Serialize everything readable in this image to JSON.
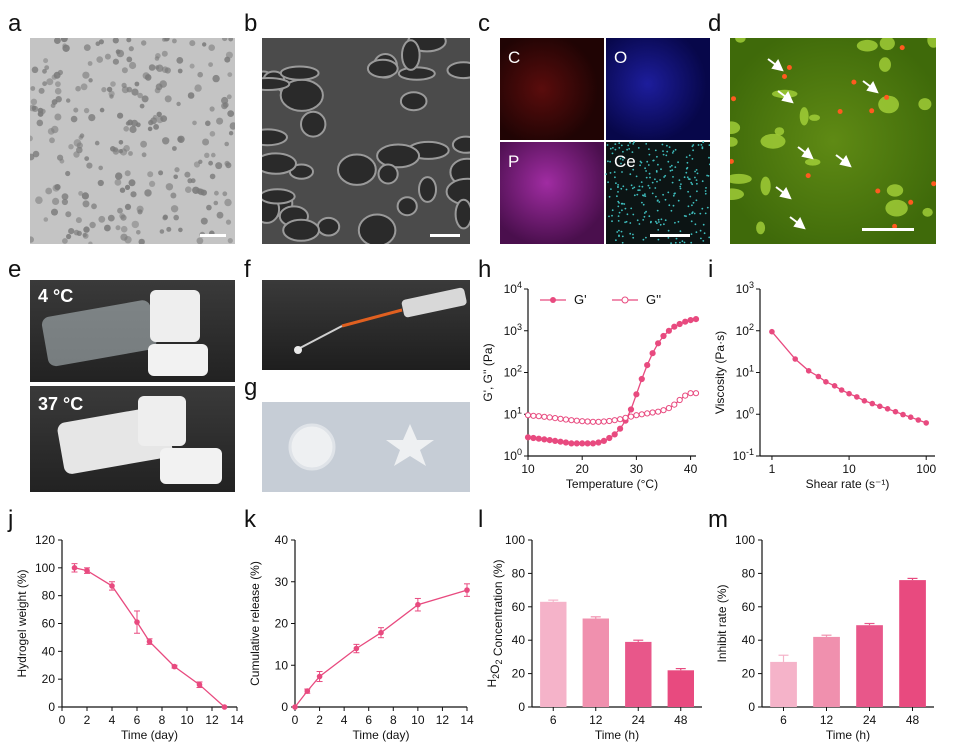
{
  "panel_labels": {
    "a": "a",
    "b": "b",
    "c": "c",
    "d": "d",
    "e": "e",
    "f": "f",
    "g": "g",
    "h": "h",
    "i": "i",
    "j": "j",
    "k": "k",
    "l": "l",
    "m": "m"
  },
  "eds_elements": [
    "C",
    "O",
    "P",
    "Ce"
  ],
  "photo_e": {
    "top": "4 °C",
    "bottom": "37 °C"
  },
  "colors": {
    "accent": "#e84a7f",
    "light_pink": "#f5b3c9",
    "mid_pink": "#f090ae",
    "dark_pink": "#e8578a",
    "tem_bg": "#bfbfbf",
    "sem_bg": "#5a5a5a"
  },
  "chart_data": [
    {
      "panel": "h",
      "type": "line",
      "xlabel": "Temperature (°C)",
      "ylabel": "G', G'' (Pa)",
      "xlim": [
        10,
        41
      ],
      "ylog": true,
      "ylim": [
        1,
        10000
      ],
      "xticks": [
        "10",
        "20",
        "30",
        "40"
      ],
      "yticks": [
        "10^0",
        "10^1",
        "10^2",
        "10^3",
        "10^4"
      ],
      "series": [
        {
          "name": "G'",
          "marker": "filled",
          "x": [
            10,
            11,
            12,
            13,
            14,
            15,
            16,
            17,
            18,
            19,
            20,
            21,
            22,
            23,
            24,
            25,
            26,
            27,
            28,
            29,
            30,
            31,
            32,
            33,
            34,
            35,
            36,
            37,
            38,
            39,
            40,
            41
          ],
          "y": [
            2.8,
            2.7,
            2.6,
            2.5,
            2.4,
            2.3,
            2.2,
            2.1,
            2.0,
            2.0,
            2.0,
            2.0,
            2.0,
            2.1,
            2.3,
            2.7,
            3.3,
            4.5,
            7,
            13,
            30,
            70,
            150,
            290,
            500,
            750,
            1000,
            1250,
            1450,
            1650,
            1800,
            1900
          ]
        },
        {
          "name": "G''",
          "marker": "open",
          "x": [
            10,
            11,
            12,
            13,
            14,
            15,
            16,
            17,
            18,
            19,
            20,
            21,
            22,
            23,
            24,
            25,
            26,
            27,
            28,
            29,
            30,
            31,
            32,
            33,
            34,
            35,
            36,
            37,
            38,
            39,
            40,
            41
          ],
          "y": [
            9.5,
            9.2,
            9.0,
            8.7,
            8.4,
            8.1,
            7.8,
            7.5,
            7.2,
            7.0,
            6.8,
            6.7,
            6.6,
            6.6,
            6.7,
            6.9,
            7.2,
            7.6,
            8.2,
            8.8,
            9.5,
            10,
            10.5,
            11,
            11.5,
            12.5,
            14,
            17,
            22,
            28,
            32,
            32
          ]
        }
      ]
    },
    {
      "panel": "i",
      "type": "line",
      "xlabel": "Shear rate (s⁻¹)",
      "ylabel": "Viscosity (Pa·s)",
      "xlog": true,
      "ylog": true,
      "xlim": [
        0.7,
        130
      ],
      "ylim": [
        0.1,
        1000
      ],
      "xticks": [
        "1",
        "10",
        "100"
      ],
      "yticks": [
        "10^-1",
        "10^0",
        "10^1",
        "10^2",
        "10^3"
      ],
      "series": [
        {
          "x": [
            1,
            2,
            3,
            4,
            5,
            6.5,
            8,
            10,
            12.6,
            15.8,
            20,
            25,
            31.6,
            40,
            50,
            63,
            79,
            100
          ],
          "y": [
            95,
            21,
            11,
            8,
            6,
            4.8,
            3.8,
            3.1,
            2.6,
            2.1,
            1.8,
            1.55,
            1.35,
            1.15,
            0.98,
            0.85,
            0.73,
            0.62
          ]
        }
      ]
    },
    {
      "panel": "j",
      "type": "line",
      "xlabel": "Time (day)",
      "ylabel": "Hydrogel weight (%)",
      "xlim": [
        0,
        14
      ],
      "ylim": [
        0,
        120
      ],
      "xticks": [
        "0",
        "2",
        "4",
        "6",
        "8",
        "10",
        "12",
        "14"
      ],
      "yticks": [
        "0",
        "20",
        "40",
        "60",
        "80",
        "100",
        "120"
      ],
      "series": [
        {
          "x": [
            1,
            2,
            4,
            6,
            7,
            9,
            11,
            13
          ],
          "y": [
            100,
            98,
            87,
            61,
            47,
            29,
            16,
            0
          ],
          "err": [
            3,
            2,
            3,
            8,
            2,
            1,
            2,
            0
          ]
        }
      ]
    },
    {
      "panel": "k",
      "type": "line",
      "xlabel": "Time (day)",
      "ylabel": "Cumulative release (%)",
      "xlim": [
        0,
        14
      ],
      "ylim": [
        0,
        40
      ],
      "xticks": [
        "0",
        "2",
        "4",
        "6",
        "8",
        "10",
        "12",
        "14"
      ],
      "yticks": [
        "0",
        "10",
        "20",
        "30",
        "40"
      ],
      "series": [
        {
          "x": [
            0,
            1,
            2,
            5,
            7,
            10,
            14
          ],
          "y": [
            0,
            3.8,
            7.3,
            14,
            17.8,
            24.5,
            28
          ],
          "err": [
            0,
            0.5,
            1.2,
            1,
            1.2,
            1.5,
            1.5
          ]
        }
      ]
    },
    {
      "panel": "l",
      "type": "bar",
      "xlabel": "Time (h)",
      "ylabel": "H2O2 Concentration (%)",
      "ylim": [
        0,
        100
      ],
      "categories": [
        "6",
        "12",
        "24",
        "48"
      ],
      "values": [
        63,
        53,
        39,
        22
      ],
      "err": [
        1,
        1,
        1,
        1
      ],
      "yticks": [
        "0",
        "20",
        "40",
        "60",
        "80",
        "100"
      ]
    },
    {
      "panel": "m",
      "type": "bar",
      "xlabel": "Time (h)",
      "ylabel": "Inhibit rate (%)",
      "ylim": [
        0,
        100
      ],
      "categories": [
        "6",
        "12",
        "24",
        "48"
      ],
      "values": [
        27,
        42,
        49,
        76
      ],
      "err": [
        4,
        1,
        1,
        1
      ],
      "yticks": [
        "0",
        "20",
        "40",
        "60",
        "80",
        "100"
      ]
    }
  ]
}
